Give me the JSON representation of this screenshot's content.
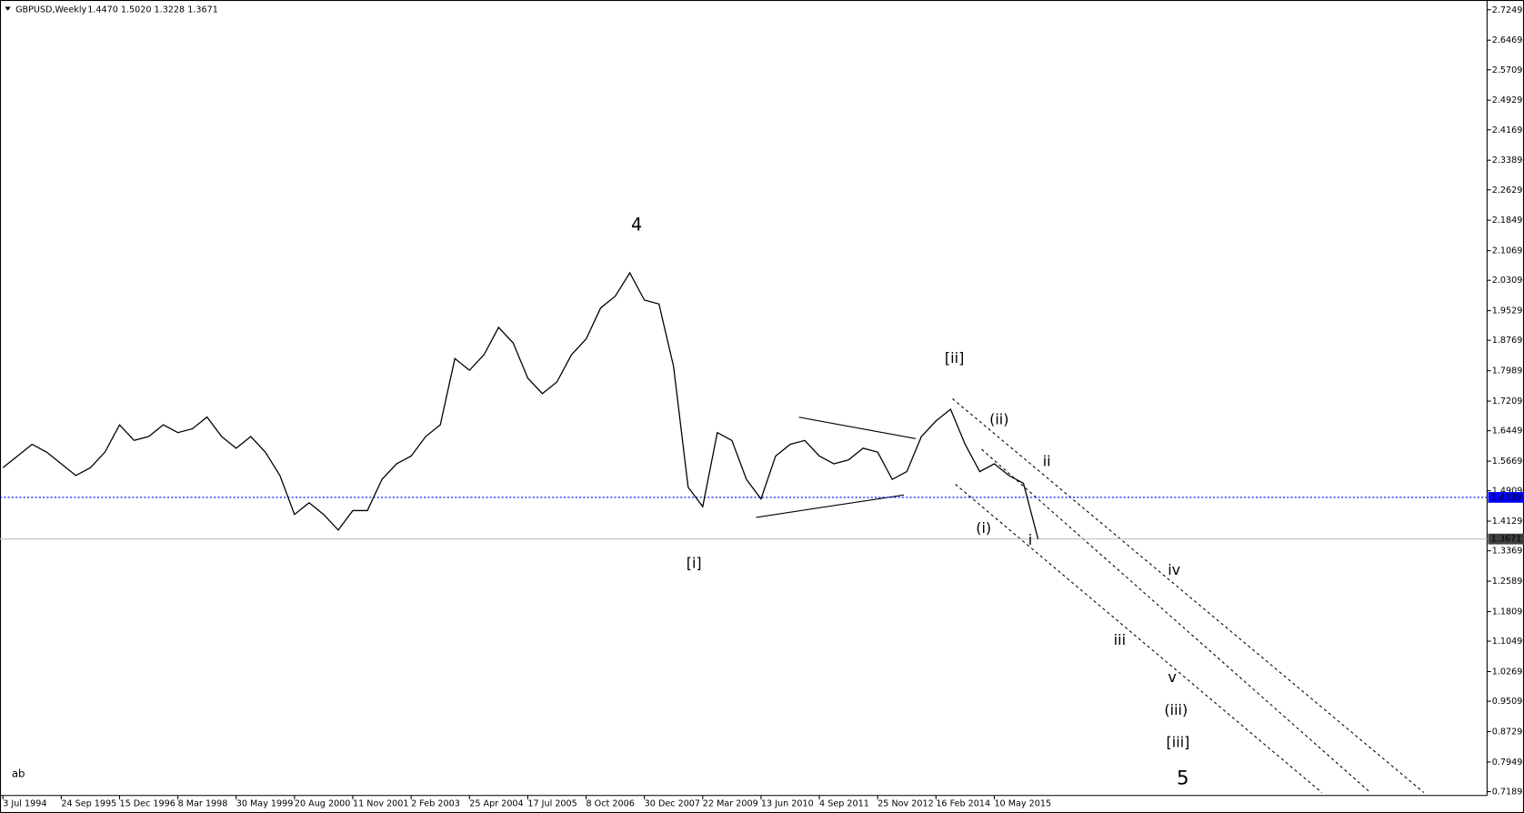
{
  "chart_data": {
    "type": "line",
    "title": "GBPUSD,Weekly",
    "subtitle": "1.4470 1.5020 1.3228 1.3671",
    "corner_text": "ab",
    "categories": [
      "3 Jul 1994",
      null,
      null,
      null,
      "24 Sep 1995",
      null,
      null,
      null,
      "15 Dec 1996",
      null,
      null,
      null,
      "8 Mar 1998",
      null,
      null,
      null,
      "30 May 1999",
      null,
      null,
      null,
      "20 Aug 2000",
      null,
      null,
      null,
      "11 Nov 2001",
      null,
      null,
      null,
      "2 Feb 2003",
      null,
      null,
      null,
      "25 Apr 2004",
      null,
      null,
      null,
      "17 Jul 2005",
      null,
      null,
      null,
      "8 Oct 2006",
      null,
      null,
      null,
      "30 Dec 2007",
      null,
      null,
      null,
      "22 Mar 2009",
      null,
      null,
      null,
      "13 Jun 2010",
      null,
      null,
      null,
      "4 Sep 2011",
      null,
      null,
      null,
      "25 Nov 2012",
      null,
      null,
      null,
      "16 Feb 2014",
      null,
      null,
      null,
      "10 May 2015",
      null,
      null,
      null
    ],
    "series": [
      {
        "name": "GBPUSD",
        "color": "#000000",
        "values": [
          1.55,
          1.58,
          1.61,
          1.59,
          1.56,
          1.53,
          1.55,
          1.59,
          1.66,
          1.62,
          1.63,
          1.66,
          1.64,
          1.65,
          1.68,
          1.63,
          1.6,
          1.63,
          1.59,
          1.53,
          1.43,
          1.46,
          1.43,
          1.39,
          1.44,
          1.44,
          1.52,
          1.56,
          1.58,
          1.63,
          1.66,
          1.83,
          1.8,
          1.84,
          1.91,
          1.87,
          1.78,
          1.74,
          1.77,
          1.84,
          1.88,
          1.96,
          1.99,
          2.05,
          1.98,
          1.97,
          1.81,
          1.5,
          1.45,
          1.64,
          1.62,
          1.52,
          1.47,
          1.58,
          1.61,
          1.62,
          1.58,
          1.56,
          1.57,
          1.6,
          1.59,
          1.52,
          1.54,
          1.63,
          1.67,
          1.7,
          1.61,
          1.54,
          1.56,
          1.53,
          1.51,
          1.3671
        ]
      }
    ],
    "ylim": [
      0.709,
      2.75
    ],
    "yticks": [
      2.7249,
      2.6469,
      2.5709,
      2.4929,
      2.4169,
      2.3389,
      2.2629,
      2.1849,
      2.1069,
      2.0309,
      1.9529,
      1.8769,
      1.7989,
      1.7209,
      1.6449,
      1.5669,
      1.4909,
      1.4129,
      1.3369,
      1.2589,
      1.1809,
      1.1049,
      1.0269,
      0.9509,
      0.8729,
      0.7949,
      0.7189
    ],
    "hlines": [
      {
        "value": 1.4739,
        "color": "#0000ff",
        "label_color": "#0000ff"
      },
      {
        "value": 1.3671,
        "color": "#c0c0c0",
        "label_color": "#404040"
      }
    ],
    "annotations": [
      {
        "text": "4",
        "color": "#0000ff"
      },
      {
        "text": "[i]",
        "color": "#ff0000"
      },
      {
        "text": "[ii]",
        "color": "#ff0000"
      },
      {
        "text": "(i)",
        "color": "#008000"
      },
      {
        "text": "(ii)",
        "color": "#008000"
      },
      {
        "text": "i",
        "color": "#0000ff"
      },
      {
        "text": "ii",
        "color": "#0000ff"
      },
      {
        "text": "iii",
        "color": "#0000ff"
      },
      {
        "text": "iv",
        "color": "#0000ff"
      },
      {
        "text": "v",
        "color": "#0000ff"
      },
      {
        "text": "(iii)",
        "color": "#008000"
      },
      {
        "text": "[iii]",
        "color": "#ff0000"
      },
      {
        "text": "5",
        "color": "#0000ff"
      }
    ]
  }
}
